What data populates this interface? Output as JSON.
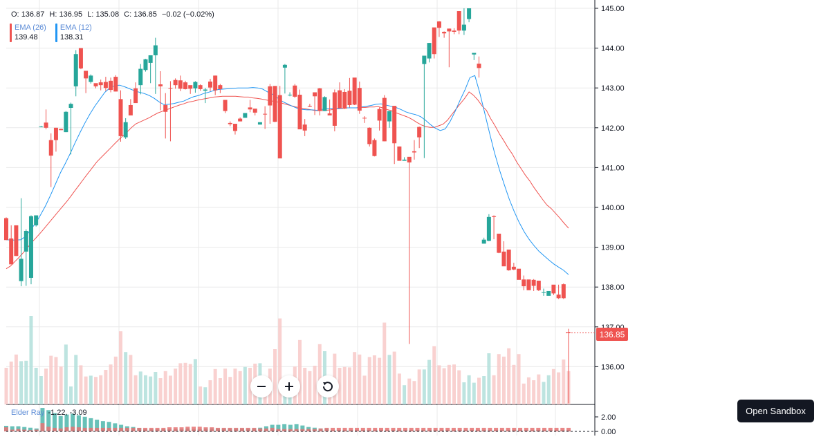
{
  "legend": {
    "ohlc": [
      {
        "label": "O:",
        "value": "136.87"
      },
      {
        "label": "H:",
        "value": "136.95"
      },
      {
        "label": "L:",
        "value": "135.08"
      },
      {
        "label": "C:",
        "value": "136.85"
      },
      {
        "label": "",
        "value": "−0.02 (−0.02%)"
      }
    ],
    "indicators": [
      {
        "name": "EMA (26)",
        "value": "139.48",
        "color": "#ef5350"
      },
      {
        "name": "EMA (12)",
        "value": "138.31",
        "color": "#2196f3"
      }
    ],
    "elder_name": "Elder Ray",
    "elder_values": "-1.22, -3.09"
  },
  "last_price_label": "136.85",
  "open_sandbox_label": "Open Sandbox",
  "zoom": {
    "out_icon": "minus-icon",
    "in_icon": "plus-icon",
    "reset_icon": "reset-icon"
  },
  "chart_data": {
    "type": "candlestick",
    "colors": {
      "up": "#26a69a",
      "down": "#ef5350",
      "ema26": "#ef5350",
      "ema12": "#2196f3",
      "grid": "#e9e9ea"
    },
    "price_axis": {
      "ticks": [
        "145.00",
        "144.00",
        "143.00",
        "142.00",
        "141.00",
        "140.00",
        "139.00",
        "138.00",
        "137.00",
        "136.00"
      ],
      "range": [
        135.08,
        145.18
      ]
    },
    "elder_axis": {
      "ticks": [
        "2.00",
        "0.00"
      ]
    },
    "candles": [
      [
        139.73,
        139.18,
        139.75,
        139.18
      ],
      [
        139.22,
        138.57,
        139.55,
        138.95
      ],
      [
        139.55,
        138.78,
        139.54,
        138.78
      ],
      [
        138.15,
        138.71,
        140.23,
        138.02
      ],
      [
        138.89,
        139.41,
        139.45,
        138.03
      ],
      [
        138.23,
        139.78,
        139.8,
        138.07
      ],
      [
        139.55,
        139.8,
        139.8,
        139.52
      ],
      [
        142.03,
        142.03,
        142.05,
        142.03
      ],
      [
        142.13,
        142.0,
        142.46,
        141.96
      ],
      [
        141.69,
        141.3,
        141.86,
        140.51
      ],
      [
        142.0,
        141.69,
        142.0,
        141.4
      ],
      [
        141.97,
        141.94,
        141.98,
        141.94
      ],
      [
        141.89,
        142.4,
        142.42,
        141.89
      ],
      [
        142.5,
        142.6,
        142.63,
        141.33
      ],
      [
        143.04,
        143.85,
        143.95,
        142.79
      ],
      [
        144.0,
        143.49,
        144.0,
        143.47
      ],
      [
        143.43,
        143.24,
        143.3,
        142.87
      ],
      [
        143.15,
        143.31,
        143.34,
        143.11
      ],
      [
        143.12,
        143.04,
        143.1,
        142.99
      ],
      [
        143.14,
        143.07,
        143.21,
        142.94
      ],
      [
        143.15,
        143.0,
        143.28,
        142.92
      ],
      [
        143.18,
        142.95,
        143.26,
        142.89
      ],
      [
        143.28,
        142.91,
        143.32,
        142.91
      ],
      [
        142.72,
        141.79,
        142.94,
        141.65
      ],
      [
        141.76,
        142.14,
        142.24,
        141.72
      ],
      [
        142.57,
        142.31,
        142.72,
        142.4
      ],
      [
        142.99,
        142.62,
        143.14,
        142.67
      ],
      [
        143.07,
        143.48,
        143.6,
        142.84
      ],
      [
        143.45,
        143.72,
        143.73,
        143.41
      ],
      [
        143.63,
        143.82,
        143.8,
        143.12
      ],
      [
        143.82,
        144.07,
        144.26,
        142.85
      ],
      [
        143.09,
        143.04,
        143.42,
        142.44
      ],
      [
        142.57,
        142.4,
        142.87,
        141.73
      ],
      [
        143.0,
        142.99,
        143.17,
        141.66
      ],
      [
        143.2,
        143.07,
        143.24,
        142.98
      ],
      [
        143.19,
        142.98,
        143.31,
        142.92
      ],
      [
        143.14,
        142.97,
        143.18,
        142.96
      ],
      [
        143.07,
        142.98,
        143.05,
        142.85
      ],
      [
        142.99,
        143.15,
        143.17,
        142.88
      ],
      [
        143.07,
        142.97,
        143.09,
        142.93
      ],
      [
        142.93,
        142.96,
        143.0,
        142.62
      ],
      [
        143.16,
        143.01,
        143.23,
        142.92
      ],
      [
        143.31,
        142.94,
        143.31,
        142.82
      ],
      [
        143.07,
        142.97,
        143.1,
        142.87
      ],
      [
        142.7,
        142.42,
        142.66,
        142.37
      ],
      [
        142.12,
        142.09,
        142.16,
        142.04
      ],
      [
        142.1,
        141.92,
        142.02,
        141.83
      ],
      [
        142.23,
        142.16,
        142.26,
        142.16
      ],
      [
        142.25,
        142.37,
        142.32,
        142.31
      ],
      [
        142.51,
        142.46,
        142.7,
        142.39
      ],
      [
        142.48,
        142.38,
        142.47,
        142.31
      ],
      [
        142.08,
        142.14,
        142.12,
        142.08
      ],
      [
        142.35,
        142.34,
        142.54,
        141.97
      ],
      [
        143.04,
        142.56,
        143.1,
        142.1
      ],
      [
        143.05,
        142.15,
        143.03,
        142.14
      ],
      [
        142.82,
        141.23,
        143.05,
        141.51
      ],
      [
        143.51,
        143.58,
        143.6,
        142.86
      ],
      [
        142.83,
        142.83,
        142.89,
        142.79
      ],
      [
        143.06,
        142.78,
        143.1,
        142.75
      ],
      [
        142.83,
        141.96,
        142.96,
        142.03
      ],
      [
        142.08,
        141.93,
        142.22,
        141.79
      ],
      [
        142.55,
        142.53,
        142.6,
        142.52
      ],
      [
        142.89,
        142.79,
        142.89,
        142.32
      ],
      [
        142.99,
        142.42,
        143.0,
        142.31
      ],
      [
        142.42,
        142.77,
        142.79,
        142.42
      ],
      [
        142.36,
        142.31,
        142.71,
        142.33
      ],
      [
        142.89,
        142.05,
        142.96,
        141.91
      ],
      [
        142.94,
        142.49,
        143.14,
        142.49
      ],
      [
        142.9,
        142.48,
        142.97,
        142.47
      ],
      [
        142.93,
        142.57,
        143.25,
        142.51
      ],
      [
        143.26,
        142.58,
        143.24,
        142.57
      ],
      [
        143.0,
        142.43,
        143.16,
        142.35
      ],
      [
        142.25,
        142.24,
        142.29,
        142.12
      ],
      [
        142.0,
        141.59,
        142.01,
        141.53
      ],
      [
        141.69,
        141.29,
        141.73,
        141.28
      ],
      [
        142.47,
        142.18,
        142.51,
        141.93
      ],
      [
        142.75,
        141.66,
        142.82,
        141.66
      ],
      [
        142.16,
        142.42,
        142.39,
        142.0
      ],
      [
        142.55,
        141.61,
        142.47,
        141.09
      ],
      [
        141.53,
        141.17,
        141.53,
        141.2
      ],
      [
        141.17,
        141.2,
        141.26,
        141.19
      ],
      [
        141.27,
        141.13,
        141.21,
        136.57
      ],
      [
        141.41,
        141.38,
        141.69,
        141.2
      ],
      [
        142.02,
        141.76,
        142.03,
        141.49
      ],
      [
        143.6,
        143.81,
        143.8,
        141.24
      ],
      [
        143.74,
        144.13,
        144.13,
        143.64
      ],
      [
        144.52,
        143.85,
        144.43,
        143.74
      ],
      [
        144.67,
        144.51,
        144.68,
        144.28
      ],
      [
        144.41,
        144.37,
        144.42,
        144.26
      ],
      [
        144.49,
        144.42,
        144.49,
        143.52
      ],
      [
        144.44,
        144.41,
        144.5,
        144.35
      ],
      [
        144.93,
        144.44,
        144.93,
        144.35
      ],
      [
        144.44,
        144.59,
        145.0,
        144.33
      ],
      [
        144.73,
        145.0,
        145.0,
        144.65
      ],
      [
        143.84,
        143.88,
        143.86,
        143.7
      ],
      [
        143.61,
        143.5,
        143.79,
        143.26
      ],
      [
        139.09,
        139.19,
        139.24,
        139.09
      ],
      [
        139.16,
        139.76,
        139.83,
        139.15
      ],
      [
        139.78,
        139.76,
        139.8,
        139.2
      ],
      [
        139.34,
        138.86,
        139.3,
        138.85
      ],
      [
        138.89,
        138.52,
        139.15,
        138.53
      ],
      [
        138.94,
        138.42,
        138.85,
        138.41
      ],
      [
        138.51,
        138.44,
        138.61,
        138.42
      ],
      [
        138.46,
        138.18,
        138.44,
        138.21
      ],
      [
        138.19,
        138.02,
        138.29,
        137.92
      ],
      [
        138.19,
        137.92,
        138.14,
        137.95
      ],
      [
        138.18,
        138.03,
        138.2,
        137.9
      ],
      [
        138.16,
        137.92,
        137.99,
        137.9
      ],
      [
        137.86,
        137.87,
        137.96,
        137.78
      ],
      [
        137.78,
        137.9,
        137.85,
        137.83
      ],
      [
        138.06,
        137.84,
        138.03,
        137.8
      ],
      [
        137.81,
        137.72,
        138.06,
        137.7
      ],
      [
        138.07,
        137.72,
        138.09,
        137.7
      ],
      [
        136.87,
        136.85,
        136.95,
        135.08
      ]
    ],
    "ema26": [
      138.46,
      138.53,
      138.64,
      138.75,
      138.87,
      139.0,
      139.13,
      139.25,
      139.37,
      139.5,
      139.63,
      139.76,
      139.89,
      140.02,
      140.15,
      140.29,
      140.44,
      140.58,
      140.73,
      140.87,
      141.01,
      141.15,
      141.26,
      141.37,
      141.48,
      141.59,
      141.7,
      141.8,
      141.9,
      142.01,
      142.1,
      142.15,
      142.2,
      142.25,
      142.31,
      142.37,
      142.41,
      142.45,
      142.49,
      142.53,
      142.57,
      142.6,
      142.64,
      142.66,
      142.69,
      142.71,
      142.73,
      142.75,
      142.77,
      142.78,
      142.79,
      142.79,
      142.79,
      142.79,
      142.78,
      142.77,
      142.77,
      142.75,
      142.74,
      142.72,
      142.7,
      142.68,
      142.66,
      142.64,
      142.61,
      142.58,
      142.55,
      142.52,
      142.5,
      142.48,
      142.46,
      142.44,
      142.43,
      142.43,
      142.44,
      142.45,
      142.47,
      142.48,
      142.49,
      142.5,
      142.5,
      142.5,
      142.51,
      142.51,
      142.52,
      142.52,
      142.53,
      142.5,
      142.46,
      142.43,
      142.38,
      142.34,
      142.3,
      142.26,
      142.2,
      142.13,
      142.07,
      142.03,
      142.01,
      142.01,
      142.05,
      142.09,
      142.19,
      142.33,
      142.47,
      142.61,
      142.74,
      142.9,
      142.82,
      142.7,
      142.55,
      142.44,
      142.23,
      142.05,
      141.85,
      141.68,
      141.5,
      141.34,
      141.14,
      140.98,
      140.81,
      140.67,
      140.5,
      140.35,
      140.2,
      140.06,
      139.97,
      139.85,
      139.73,
      139.6,
      139.48
    ],
    "ema12": [
      139.19,
      139.18,
      139.18,
      139.19,
      139.28,
      139.45,
      139.61,
      139.82,
      140.05,
      140.31,
      140.59,
      140.87,
      141.11,
      141.36,
      141.63,
      141.89,
      142.13,
      142.35,
      142.55,
      142.72,
      142.89,
      143.0,
      143.06,
      143.07,
      143.03,
      142.98,
      142.93,
      142.89,
      142.86,
      142.81,
      142.74,
      142.65,
      142.58,
      142.59,
      142.61,
      142.64,
      142.67,
      142.73,
      142.78,
      142.81,
      142.86,
      142.89,
      142.93,
      142.96,
      142.97,
      142.98,
      142.99,
      143.0,
      143.0,
      143.0,
      143.01,
      143.0,
      142.97,
      142.9,
      142.84,
      142.75,
      142.66,
      142.6,
      142.54,
      142.49,
      142.46,
      142.45,
      142.45,
      142.44,
      142.46,
      142.48,
      142.49,
      142.48,
      142.49,
      142.5,
      142.5,
      142.5,
      142.52,
      142.54,
      142.56,
      142.59,
      142.6,
      142.57,
      142.54,
      142.51,
      142.46,
      142.4,
      142.36,
      142.33,
      142.28,
      142.19,
      142.08,
      141.99,
      141.93,
      141.97,
      142.16,
      142.41,
      142.69,
      142.95,
      143.26,
      143.31,
      142.88,
      142.37,
      141.86,
      141.37,
      140.94,
      140.56,
      140.2,
      139.89,
      139.62,
      139.39,
      139.2,
      139.04,
      138.9,
      138.79,
      138.68,
      138.58,
      138.5,
      138.42,
      138.31
    ],
    "elder_bars": [
      [
        0.76,
        -0.7
      ],
      [
        0.7,
        -0.3
      ],
      [
        0.7,
        -0.4
      ],
      [
        0.6,
        -0.3
      ],
      [
        0.5,
        -0.2
      ],
      [
        0.4,
        -0.3
      ],
      [
        3.2,
        -1.4
      ],
      [
        2.9,
        -0.8
      ],
      [
        2.5,
        -0.6
      ],
      [
        2.1,
        -0.5
      ],
      [
        2.3,
        -0.7
      ],
      [
        2.4,
        -0.8
      ],
      [
        2.2,
        -0.7
      ],
      [
        2.0,
        -0.6
      ],
      [
        1.8,
        -0.6
      ],
      [
        1.6,
        -0.6
      ],
      [
        1.4,
        -0.6
      ],
      [
        1.3,
        -0.6
      ],
      [
        1.1,
        -0.6
      ],
      [
        0.9,
        -0.6
      ],
      [
        0.7,
        -0.6
      ],
      [
        0.6,
        -0.6
      ],
      [
        0.45,
        -0.6
      ],
      [
        0.3,
        -0.6
      ],
      [
        0.3,
        -0.6
      ],
      [
        0.3,
        -0.6
      ],
      [
        0.3,
        -0.6
      ],
      [
        0.3,
        -0.7
      ],
      [
        0.3,
        -0.7
      ],
      [
        0.3,
        -0.7
      ],
      [
        0.4,
        -0.8
      ],
      [
        0.3,
        -0.8
      ],
      [
        0.3,
        -0.8
      ],
      [
        0.4,
        -0.7
      ],
      [
        0.4,
        -0.7
      ],
      [
        0.4,
        -0.6
      ],
      [
        0.4,
        -0.6
      ],
      [
        0.4,
        -0.6
      ],
      [
        0.4,
        -0.6
      ],
      [
        0.4,
        -0.6
      ],
      [
        0.4,
        -0.6
      ],
      [
        0.4,
        -0.6
      ],
      [
        0.5,
        -0.5
      ],
      [
        0.7,
        -0.5
      ],
      [
        0.9,
        -0.6
      ],
      [
        0.9,
        -0.4
      ],
      [
        1.0,
        -0.4
      ],
      [
        0.9,
        -0.4
      ],
      [
        1.0,
        -0.4
      ],
      [
        0.8,
        -0.4
      ],
      [
        0.6,
        -0.4
      ],
      [
        0.5,
        -0.4
      ],
      [
        0.4,
        -0.5
      ],
      [
        0.4,
        -0.6
      ],
      [
        0.2,
        -0.6
      ],
      [
        0.2,
        -0.6
      ],
      [
        0.2,
        -0.6
      ],
      [
        0.2,
        -0.6
      ],
      [
        0.2,
        -0.6
      ],
      [
        0.2,
        -0.6
      ],
      [
        0.2,
        -0.6
      ],
      [
        0.2,
        -0.6
      ],
      [
        0.2,
        -0.6
      ],
      [
        0.2,
        -0.6
      ],
      [
        0.2,
        -0.6
      ],
      [
        0.2,
        -0.6
      ],
      [
        0.2,
        -0.6
      ],
      [
        0.2,
        -0.6
      ],
      [
        0.2,
        -0.6
      ],
      [
        0.2,
        -0.6
      ],
      [
        0.2,
        -0.6
      ],
      [
        0.2,
        -0.6
      ],
      [
        0.2,
        -0.6
      ],
      [
        0.2,
        -0.6
      ],
      [
        0.2,
        -0.6
      ],
      [
        0.2,
        -0.6
      ],
      [
        0.2,
        -0.6
      ],
      [
        0.2,
        -0.6
      ],
      [
        0.2,
        -0.6
      ],
      [
        0.2,
        -0.6
      ],
      [
        0.2,
        -0.6
      ],
      [
        0.2,
        -0.6
      ],
      [
        0.2,
        -0.6
      ],
      [
        0.2,
        -0.6
      ],
      [
        0.2,
        -0.6
      ],
      [
        0.2,
        -0.6
      ],
      [
        0.2,
        -0.6
      ],
      [
        0.2,
        -0.6
      ],
      [
        0.2,
        -0.6
      ],
      [
        0.2,
        -0.6
      ],
      [
        0.2,
        -0.6
      ],
      [
        0.2,
        -0.6
      ],
      [
        0.2,
        -0.6
      ],
      [
        0.2,
        -0.6
      ]
    ]
  }
}
